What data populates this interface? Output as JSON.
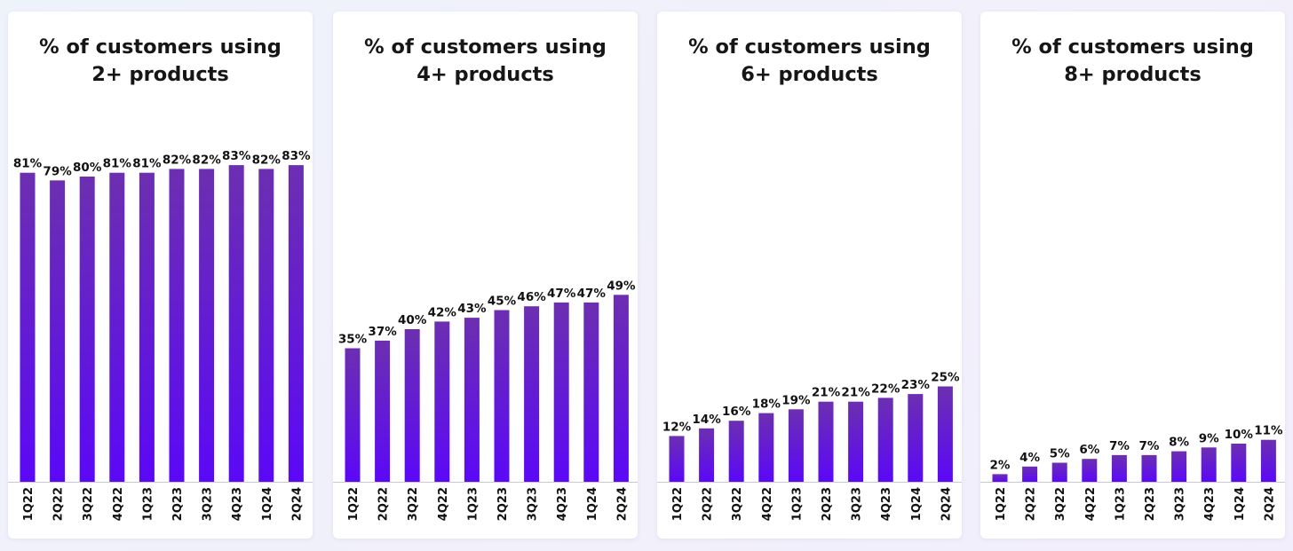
{
  "colors": {
    "bar_top": "#6c2fb0",
    "bar_bottom": "#5b08f7",
    "text": "#111111",
    "panel_bg": "#ffffff"
  },
  "chart_data": [
    {
      "type": "bar",
      "title_lines": [
        "% of customers using",
        "2+ products"
      ],
      "categories": [
        "1Q22",
        "2Q22",
        "3Q22",
        "4Q22",
        "1Q23",
        "2Q23",
        "3Q23",
        "4Q23",
        "1Q24",
        "2Q24"
      ],
      "values": [
        81,
        79,
        80,
        81,
        81,
        82,
        82,
        83,
        82,
        83
      ],
      "labels": [
        "81%",
        "79%",
        "80%",
        "81%",
        "81%",
        "82%",
        "82%",
        "83%",
        "82%",
        "83%"
      ],
      "ylim": [
        0,
        100
      ]
    },
    {
      "type": "bar",
      "title_lines": [
        "% of customers using",
        "4+ products"
      ],
      "categories": [
        "1Q22",
        "2Q22",
        "3Q22",
        "4Q22",
        "1Q23",
        "2Q23",
        "3Q23",
        "4Q23",
        "1Q24",
        "2Q24"
      ],
      "values": [
        35,
        37,
        40,
        42,
        43,
        45,
        46,
        47,
        47,
        49
      ],
      "labels": [
        "35%",
        "37%",
        "40%",
        "42%",
        "43%",
        "45%",
        "46%",
        "47%",
        "47%",
        "49%"
      ],
      "ylim": [
        0,
        100
      ]
    },
    {
      "type": "bar",
      "title_lines": [
        "% of customers using",
        "6+ products"
      ],
      "categories": [
        "1Q22",
        "2Q22",
        "3Q22",
        "4Q22",
        "1Q23",
        "2Q23",
        "3Q23",
        "4Q23",
        "1Q24",
        "2Q24"
      ],
      "values": [
        12,
        14,
        16,
        18,
        19,
        21,
        21,
        22,
        23,
        25
      ],
      "labels": [
        "12%",
        "14%",
        "16%",
        "18%",
        "19%",
        "21%",
        "21%",
        "22%",
        "23%",
        "25%"
      ],
      "ylim": [
        0,
        100
      ]
    },
    {
      "type": "bar",
      "title_lines": [
        "% of customers using",
        "8+ products"
      ],
      "categories": [
        "1Q22",
        "2Q22",
        "3Q22",
        "4Q22",
        "1Q23",
        "2Q23",
        "3Q23",
        "4Q23",
        "1Q24",
        "2Q24"
      ],
      "values": [
        2,
        4,
        5,
        6,
        7,
        7,
        8,
        9,
        10,
        11
      ],
      "labels": [
        "2%",
        "4%",
        "5%",
        "6%",
        "7%",
        "7%",
        "8%",
        "9%",
        "10%",
        "11%"
      ],
      "ylim": [
        0,
        100
      ]
    }
  ]
}
